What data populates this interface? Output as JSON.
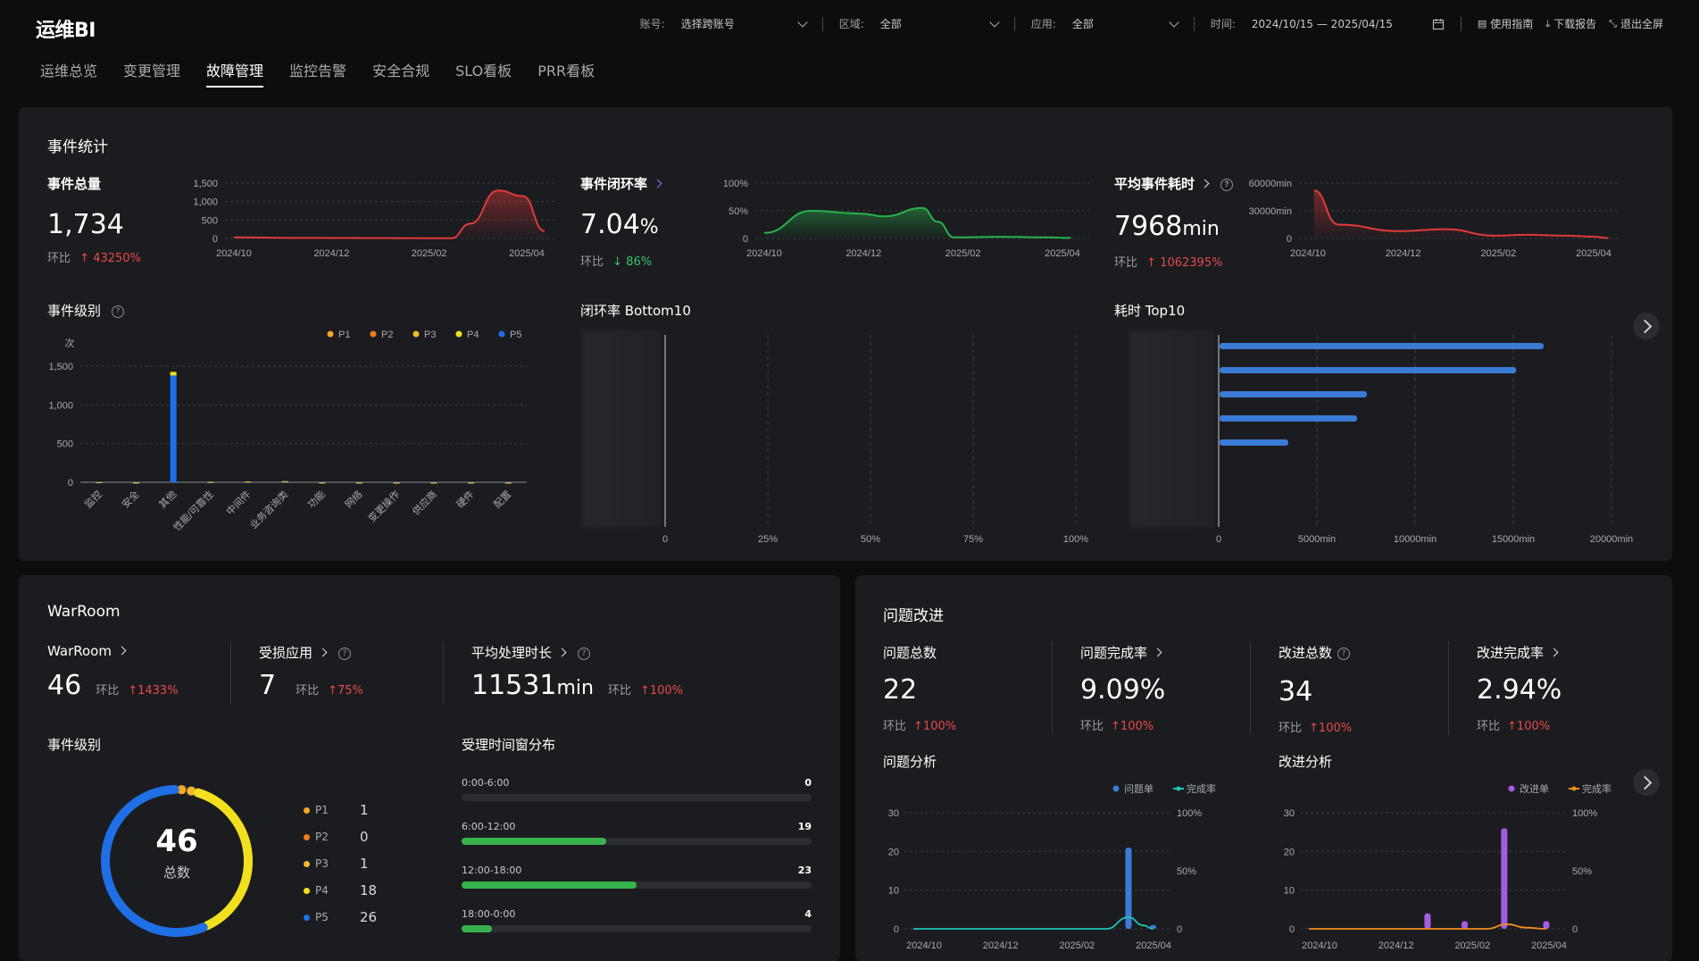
{
  "app": {
    "title": "运维BI"
  },
  "filters": {
    "account_label": "账号:",
    "account_value": "选择跨账号",
    "region_label": "区域:",
    "region_value": "全部",
    "app_label": "应用:",
    "app_value": "全部",
    "time_label": "时间:",
    "time_value": "2024/10/15 — 2025/04/15"
  },
  "actions": {
    "guide": "使用指南",
    "download": "下载报告",
    "fullscreen": "退出全屏"
  },
  "tabs": [
    "运维总览",
    "变更管理",
    "故障管理",
    "监控告警",
    "安全合规",
    "SLO看板",
    "PRR看板"
  ],
  "event_stats": {
    "title": "事件统计",
    "total": {
      "label": "事件总量",
      "value": "1,734",
      "hb_label": "环比",
      "hb_value": "43250%"
    },
    "close_rate": {
      "label": "事件闭环率",
      "value": "7.04",
      "unit": "%",
      "hb_label": "环比",
      "hb_value": "86%"
    },
    "avg_time": {
      "label": "平均事件耗时",
      "value": "7968",
      "unit": "min",
      "hb_label": "环比",
      "hb_value": "1062395%"
    },
    "level_title": "事件级别",
    "bottom10_title": "闭环率 Bottom10",
    "top10_title": "耗时 Top10"
  },
  "warroom": {
    "title": "WarRoom",
    "m1": {
      "label": "WarRoom",
      "value": "46",
      "hb_label": "环比",
      "hb_value": "1433%"
    },
    "m2": {
      "label": "受损应用",
      "value": "7",
      "hb_label": "环比",
      "hb_value": "75%"
    },
    "m3": {
      "label": "平均处理时长",
      "value": "11531",
      "unit": "min",
      "hb_label": "环比",
      "hb_value": "100%"
    },
    "level_title": "事件级别",
    "donut_total": "46",
    "donut_label": "总数",
    "levels": [
      {
        "name": "P1",
        "count": "1",
        "color": "#f5a623"
      },
      {
        "name": "P2",
        "count": "0",
        "color": "#f07d1a"
      },
      {
        "name": "P3",
        "count": "1",
        "color": "#f5b82e"
      },
      {
        "name": "P4",
        "count": "18",
        "color": "#f2e01e"
      },
      {
        "name": "P5",
        "count": "26",
        "color": "#1f6fe6"
      }
    ],
    "window_title": "受理时间窗分布",
    "windows": [
      {
        "label": "0:00-6:00",
        "count": "0",
        "fraction": 0
      },
      {
        "label": "6:00-12:00",
        "count": "19",
        "fraction": 0.413
      },
      {
        "label": "12:00-18:00",
        "count": "23",
        "fraction": 0.5
      },
      {
        "label": "18:00-0:00",
        "count": "4",
        "fraction": 0.087
      }
    ]
  },
  "problem": {
    "title": "问题改进",
    "m1": {
      "label": "问题总数",
      "value": "22",
      "hb_label": "环比",
      "hb_value": "100%"
    },
    "m2": {
      "label": "问题完成率",
      "value": "9.09%",
      "hb_label": "环比",
      "hb_value": "100%"
    },
    "m3": {
      "label": "改进总数",
      "value": "34",
      "hb_label": "环比",
      "hb_value": "100%"
    },
    "m4": {
      "label": "改进完成率",
      "value": "2.94%",
      "hb_label": "环比",
      "hb_value": "100%"
    },
    "analysis_title": "问题分析",
    "improve_title": "改进分析"
  },
  "chart_data": [
    {
      "id": "total_trend",
      "type": "area",
      "x": [
        "2024/10",
        "2024/12",
        "2025/02",
        "2025/04"
      ],
      "yticks": [
        "1,500",
        "1,000",
        "500",
        "0"
      ],
      "ylim": [
        0,
        1500
      ],
      "series": [
        {
          "color": "#e03a3a",
          "points": [
            [
              0,
              30
            ],
            [
              0.25,
              15
            ],
            [
              0.5,
              10
            ],
            [
              0.7,
              5
            ],
            [
              0.76,
              400
            ],
            [
              0.85,
              1300
            ],
            [
              0.93,
              1150
            ],
            [
              1,
              200
            ]
          ]
        }
      ]
    },
    {
      "id": "close_trend",
      "type": "area",
      "x": [
        "2024/10",
        "2024/12",
        "2025/02",
        "2025/04"
      ],
      "yticks": [
        "100%",
        "50%",
        "0"
      ],
      "ylim": [
        0,
        100
      ],
      "series": [
        {
          "color": "#27b24a",
          "points": [
            [
              0,
              10
            ],
            [
              0.15,
              50
            ],
            [
              0.3,
              45
            ],
            [
              0.38,
              40
            ],
            [
              0.5,
              55
            ],
            [
              0.55,
              30
            ],
            [
              0.6,
              2
            ],
            [
              0.75,
              3
            ],
            [
              0.9,
              2
            ],
            [
              0.97,
              1
            ]
          ]
        }
      ]
    },
    {
      "id": "time_trend",
      "type": "area",
      "x": [
        "2024/10",
        "2024/12",
        "2025/02",
        "2025/04"
      ],
      "yticks": [
        "60000min",
        "30000min",
        "0"
      ],
      "ylim": [
        0,
        60000
      ],
      "series": [
        {
          "color": "#e03a3a",
          "points": [
            [
              0.02,
              52000
            ],
            [
              0.1,
              15000
            ],
            [
              0.3,
              8000
            ],
            [
              0.45,
              10000
            ],
            [
              0.62,
              3000
            ],
            [
              0.72,
              4000
            ],
            [
              0.85,
              3000
            ],
            [
              0.94,
              2000
            ],
            [
              0.99,
              500
            ]
          ]
        }
      ]
    },
    {
      "id": "event_level",
      "type": "bar",
      "yunit": "次",
      "yticks": [
        "1,500",
        "1,000",
        "500",
        "0"
      ],
      "ylim": [
        0,
        1500
      ],
      "legend": [
        "P1",
        "P2",
        "P3",
        "P4",
        "P5"
      ],
      "legend_colors": [
        "#f5a623",
        "#f07d1a",
        "#f5b82e",
        "#f2e01e",
        "#1f6fe6"
      ],
      "categories": [
        "监控",
        "安全",
        "其他",
        "性能/可靠性",
        "中间件",
        "业务咨询类",
        "功能",
        "网络",
        "变更操作",
        "供应商",
        "硬件",
        "配置"
      ],
      "values": [
        5,
        0,
        1380,
        8,
        12,
        15,
        0,
        0,
        0,
        0,
        0,
        0
      ]
    },
    {
      "id": "close_bottom10",
      "type": "bar",
      "xticks": [
        "0",
        "25%",
        "50%",
        "75%",
        "100%"
      ],
      "values": []
    },
    {
      "id": "time_top10",
      "type": "bar",
      "xticks": [
        "0",
        "5000min",
        "10000min",
        "15000min",
        "20000min"
      ],
      "xlim": [
        0,
        20000
      ],
      "values": [
        16500,
        15100,
        7500,
        7000,
        3500
      ]
    },
    {
      "id": "problem_analysis",
      "type": "bar",
      "legend": [
        "问题单",
        "完成率"
      ],
      "legend_colors": [
        "#3a7bd5",
        "#1fc4b4"
      ],
      "x": [
        "2024/10",
        "2024/12",
        "2025/02",
        "2025/04"
      ],
      "yticks": [
        "30",
        "20",
        "10",
        "0"
      ],
      "y2ticks": [
        "100%",
        "50%",
        "0"
      ],
      "bars": [
        [
          0.87,
          21
        ],
        [
          0.97,
          1
        ]
      ],
      "rate_points": [
        [
          0,
          0
        ],
        [
          0.78,
          0
        ],
        [
          0.87,
          10
        ],
        [
          0.93,
          3
        ],
        [
          0.97,
          0
        ]
      ]
    },
    {
      "id": "improve_analysis",
      "type": "bar",
      "legend": [
        "改进单",
        "完成率"
      ],
      "legend_colors": [
        "#a45de2",
        "#f08c1f"
      ],
      "x": [
        "2024/10",
        "2024/12",
        "2025/02",
        "2025/04"
      ],
      "yticks": [
        "30",
        "20",
        "10",
        "0"
      ],
      "y2ticks": [
        "100%",
        "50%",
        "0"
      ],
      "bars": [
        [
          0.48,
          4
        ],
        [
          0.63,
          2
        ],
        [
          0.79,
          26
        ],
        [
          0.96,
          2
        ]
      ],
      "rate_points": [
        [
          0,
          0
        ],
        [
          0.72,
          0
        ],
        [
          0.8,
          4
        ],
        [
          0.88,
          1
        ],
        [
          0.96,
          0
        ]
      ]
    }
  ]
}
